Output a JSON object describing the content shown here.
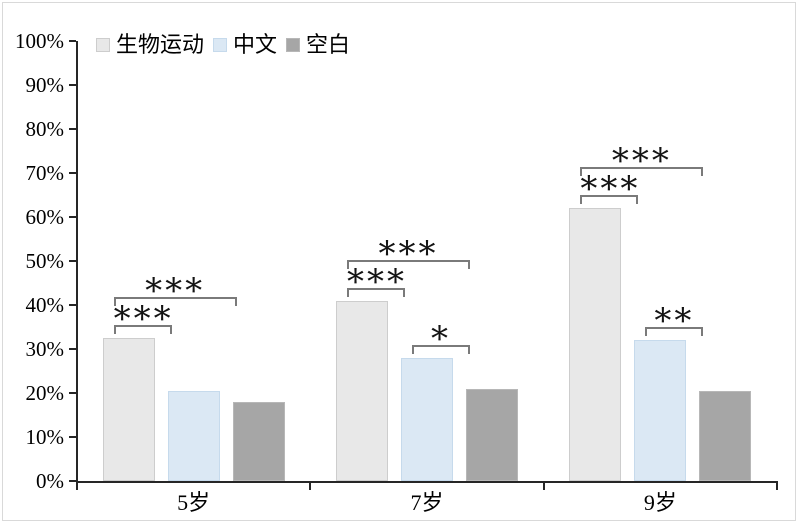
{
  "chart_data": {
    "type": "bar",
    "title": "",
    "categories": [
      "5岁",
      "7岁",
      "9岁"
    ],
    "series": [
      {
        "name": "生物运动",
        "color": "#e8e8e8",
        "border_color": "#cdcdcd",
        "values": [
          32.5,
          41,
          62
        ]
      },
      {
        "name": "中文",
        "color": "#dbe8f4",
        "border_color": "#c6daec",
        "values": [
          20.5,
          28,
          32
        ]
      },
      {
        "name": "空白",
        "color": "#a6a6a6",
        "border_color": "#b7b7b7",
        "values": [
          18,
          21,
          20.5
        ]
      }
    ],
    "xlabel": "",
    "ylabel": "",
    "ylim": [
      0,
      100
    ],
    "ytick_step": 10,
    "yticks": [
      "0%",
      "10%",
      "20%",
      "30%",
      "40%",
      "50%",
      "60%",
      "70%",
      "80%",
      "90%",
      "100%"
    ],
    "grid": false,
    "legend_position": "top-left",
    "significance_brackets": [
      {
        "group": 0,
        "from": 0,
        "to": 1,
        "label": "***",
        "tier": 1
      },
      {
        "group": 0,
        "from": 0,
        "to": 2,
        "label": "***",
        "tier": 2
      },
      {
        "group": 1,
        "from": 0,
        "to": 1,
        "label": "***",
        "tier": 1
      },
      {
        "group": 1,
        "from": 0,
        "to": 2,
        "label": "***",
        "tier": 2
      },
      {
        "group": 1,
        "from": 1,
        "to": 2,
        "label": "*",
        "tier": 1
      },
      {
        "group": 2,
        "from": 0,
        "to": 1,
        "label": "***",
        "tier": 1
      },
      {
        "group": 2,
        "from": 0,
        "to": 2,
        "label": "***",
        "tier": 2
      },
      {
        "group": 2,
        "from": 1,
        "to": 2,
        "label": "**",
        "tier": 1
      }
    ],
    "colors": {
      "axis": "#262626",
      "bracket": "#7a7a7a",
      "text": "#000000",
      "figure_border": "#d9d9d9",
      "background": "#ffffff"
    }
  }
}
